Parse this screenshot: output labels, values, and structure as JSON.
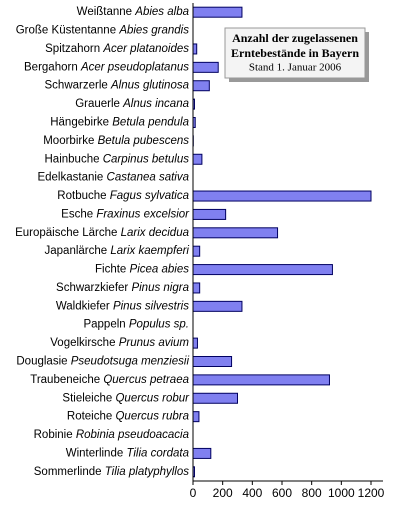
{
  "chart_data": {
    "type": "hbar",
    "title": [
      "Anzahl der zugelassenen",
      "Erntebestände in Bayern"
    ],
    "subtitle": "Stand 1. Januar 2006",
    "categories": [
      "Weißtanne",
      "Große Küstentanne",
      "Spitzahorn",
      "Bergahorn",
      "Schwarzerle",
      "Grauerle",
      "Hängebirke",
      "Moorbirke",
      "Hainbuche",
      "Edelkastanie",
      "Rotbuche",
      "Esche",
      "Europäische Lärche",
      "Japanlärche",
      "Fichte",
      "Schwarzkiefer",
      "Waldkiefer",
      "Pappeln",
      "Vogelkirsche",
      "Douglasie",
      "Traubeneiche",
      "Stieleiche",
      "Roteiche",
      "Robinie",
      "Winterlinde",
      "Sommerlinde"
    ],
    "species": [
      "Abies alba",
      "Abies grandis",
      "Acer platanoides",
      "Acer pseudoplatanus",
      "Alnus glutinosa",
      "Alnus incana",
      "Betula pendula",
      "Betula pubescens",
      "Carpinus betulus",
      "Castanea sativa",
      "Fagus sylvatica",
      "Fraxinus excelsior",
      "Larix decidua",
      "Larix kaempferi",
      "Picea abies",
      "Pinus nigra",
      "Pinus silvestris",
      "Populus sp.",
      "Prunus avium",
      "Pseudotsuga menziesii",
      "Quercus petraea",
      "Quercus robur",
      "Quercus rubra",
      "Robinia pseudoacacia",
      "Tilia cordata",
      "Tilia platyphyllos"
    ],
    "values": [
      330,
      0,
      25,
      170,
      110,
      10,
      15,
      2,
      60,
      0,
      1200,
      220,
      570,
      45,
      940,
      45,
      330,
      0,
      30,
      260,
      920,
      300,
      40,
      0,
      120,
      10
    ],
    "color": "#8080f0",
    "xlim": [
      0,
      1200
    ],
    "xticks": [
      0,
      200,
      400,
      600,
      800,
      1000,
      1200
    ]
  }
}
